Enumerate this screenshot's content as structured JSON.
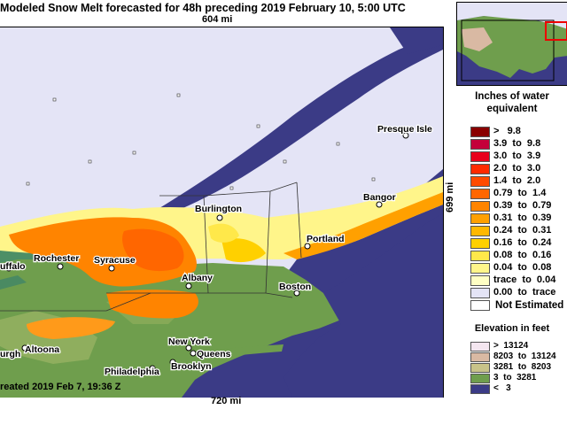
{
  "title": "Modeled Snow Melt forecasted for 48h preceding 2019 February 10, 5:00 UTC",
  "scale": {
    "top": "604 mi",
    "bottom": "720 mi",
    "right": "699 mi"
  },
  "footer": "reated 2019 Feb 7, 19:36 Z",
  "legend": {
    "title_line1": "Inches of water",
    "title_line2": "equivalent",
    "rows": [
      {
        "label": ">   9.8",
        "color": "#8a0000"
      },
      {
        "label": "3.9  to  9.8",
        "color": "#c4003a"
      },
      {
        "label": "3.0  to  3.9",
        "color": "#e8001c"
      },
      {
        "label": "2.0  to  3.0",
        "color": "#ff2a00"
      },
      {
        "label": "1.4  to  2.0",
        "color": "#ff4a00"
      },
      {
        "label": "0.79  to  1.4",
        "color": "#ff6600"
      },
      {
        "label": "0.39  to  0.79",
        "color": "#ff8400"
      },
      {
        "label": "0.31  to  0.39",
        "color": "#ffa000"
      },
      {
        "label": "0.24  to  0.31",
        "color": "#ffb800"
      },
      {
        "label": "0.16  to  0.24",
        "color": "#ffd000"
      },
      {
        "label": "0.08  to  0.16",
        "color": "#ffe84a"
      },
      {
        "label": "0.04  to  0.08",
        "color": "#fff58a"
      },
      {
        "label": "trace  to  0.04",
        "color": "#ffffc4"
      },
      {
        "label": "0.00  to  trace",
        "color": "#e4e4f6"
      }
    ],
    "not_estimated": "Not Estimated",
    "elevation_title": "Elevation in feet",
    "elevation_rows": [
      {
        "label": ">  13124",
        "color": "#f4e6f0"
      },
      {
        "label": "8203  to  13124",
        "color": "#d9b9a3"
      },
      {
        "label": "3281  to  8203",
        "color": "#c9c389"
      },
      {
        "label": "3  to  3281",
        "color": "#6f9e4d"
      },
      {
        "label": "<   3",
        "color": "#3b3b86"
      }
    ]
  },
  "cities": {
    "presque_isle": "Presque Isle",
    "bangor": "Bangor",
    "burlington": "Burlington",
    "portland": "Portland",
    "rochester": "Rochester",
    "syracuse": "Syracuse",
    "buffalo": "uffalo",
    "albany": "Albany",
    "boston": "Boston",
    "new_york": "New York",
    "queens": "Queens",
    "brooklyn": "Brooklyn",
    "philadelphia": "Philadelphia",
    "altoona": "Altoona",
    "pittsburgh": "urgh"
  },
  "colors": {
    "water": "#3b3b86",
    "snow_free_land": "#6f9e4d",
    "no_melt": "#e4e4f6",
    "lake": "#4a8a62"
  }
}
